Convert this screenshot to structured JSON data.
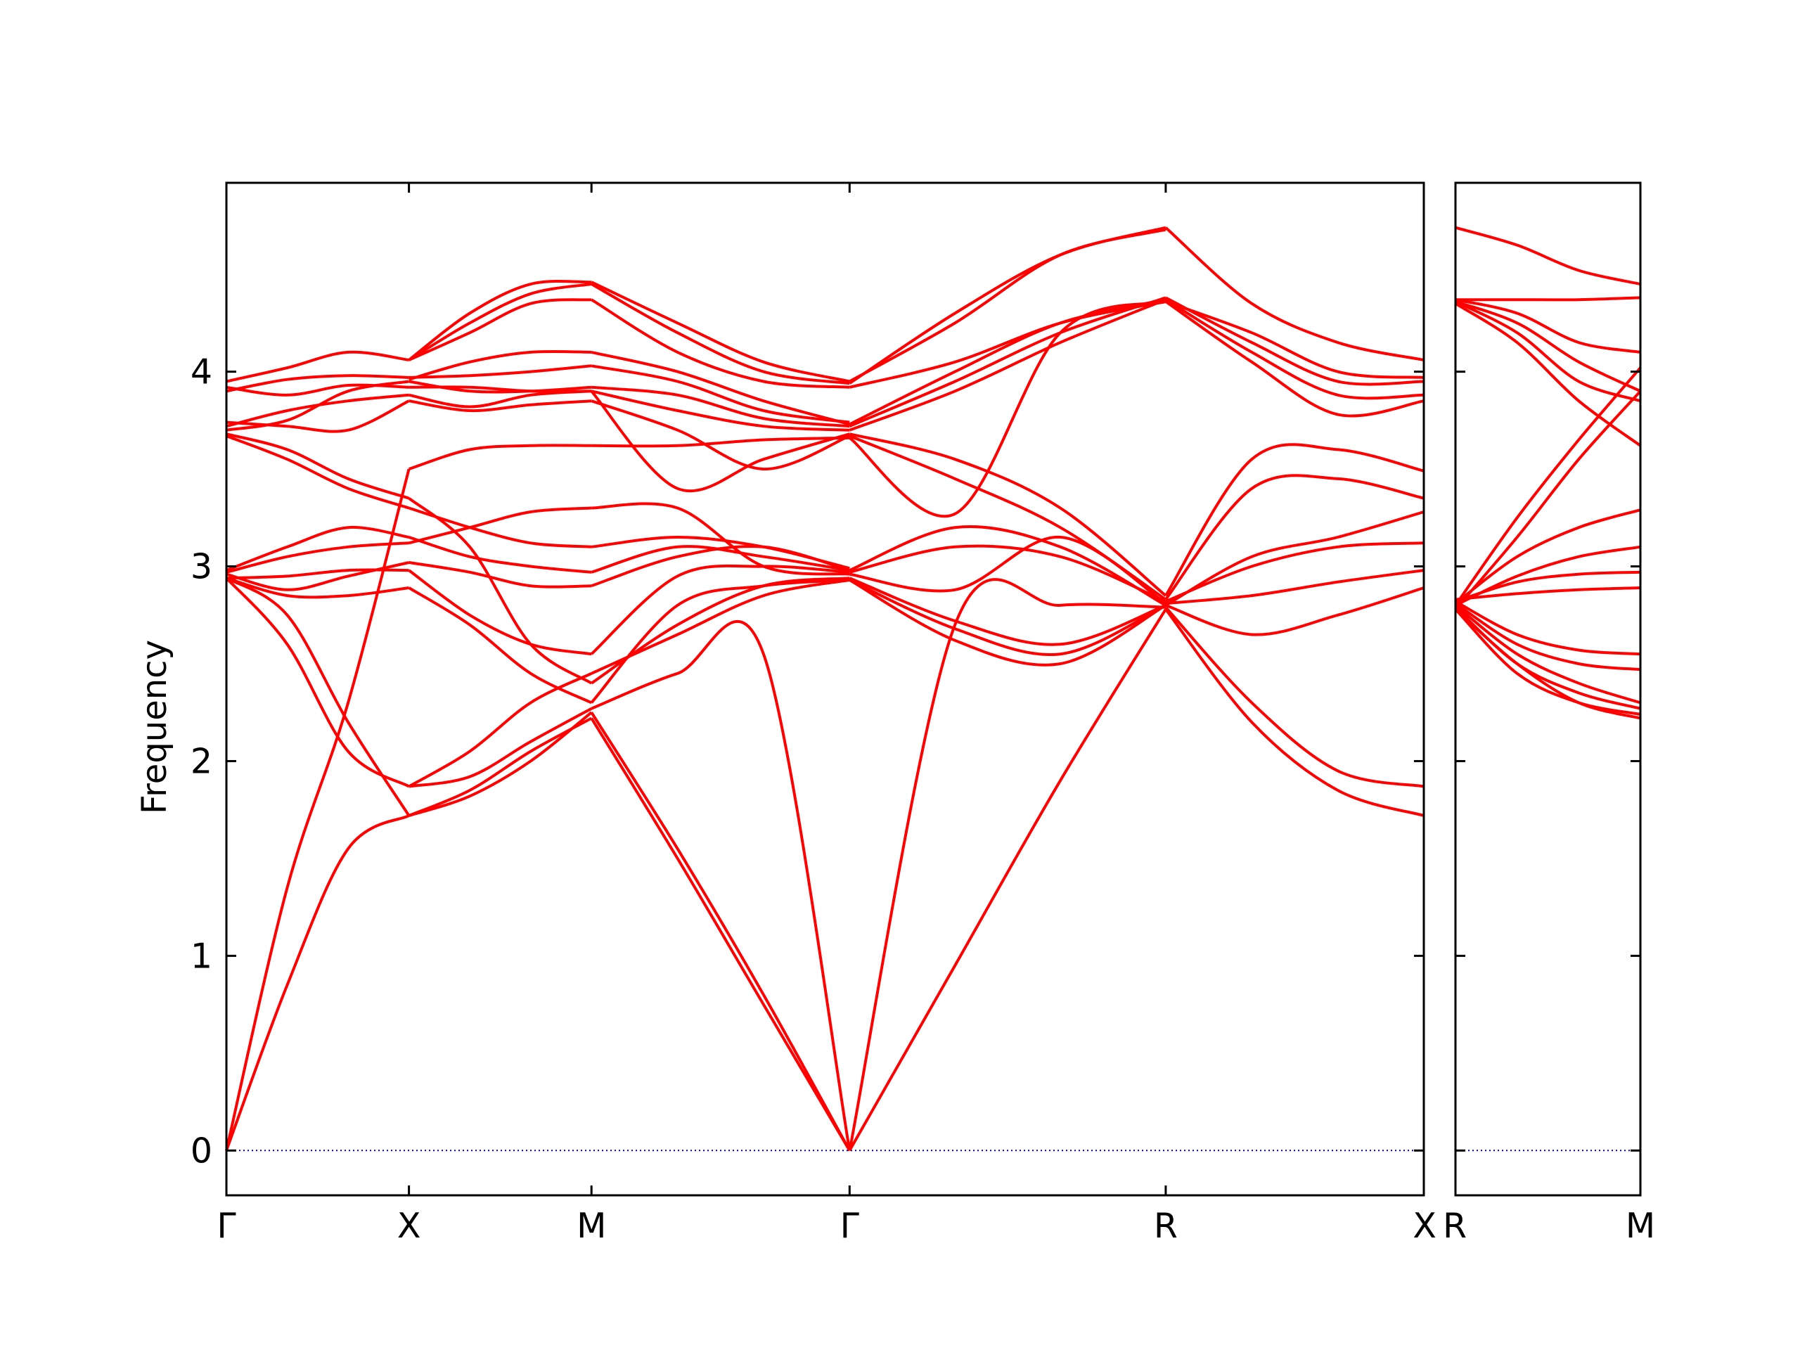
{
  "chart_data": {
    "type": "line",
    "title": "",
    "ylabel": "Frequency",
    "ylim": [
      -0.23,
      4.97
    ],
    "y_ticks": [
      0,
      1,
      2,
      3,
      4
    ],
    "grid": false,
    "line_color": "#ff0000",
    "zero_line_color": "#0000aa",
    "panels": [
      {
        "name": "main",
        "segments": [
          {
            "from": "Γ",
            "to": "X",
            "length": 0.5,
            "bands": [
              [
                0.0,
                0.85,
                1.55,
                1.72
              ],
              [
                0.0,
                1.35,
                2.3,
                3.5
              ],
              [
                2.94,
                2.75,
                2.2,
                1.72
              ],
              [
                2.94,
                2.6,
                2.05,
                1.87
              ],
              [
                2.94,
                2.85,
                2.85,
                2.89
              ],
              [
                2.94,
                2.95,
                2.98,
                2.98
              ],
              [
                2.96,
                2.88,
                2.95,
                3.02
              ],
              [
                2.97,
                3.05,
                3.1,
                3.12
              ],
              [
                2.98,
                3.1,
                3.2,
                3.15
              ],
              [
                3.67,
                3.55,
                3.4,
                3.3
              ],
              [
                3.68,
                3.6,
                3.45,
                3.35
              ],
              [
                3.7,
                3.75,
                3.9,
                3.95
              ],
              [
                3.72,
                3.8,
                3.85,
                3.88
              ],
              [
                3.74,
                3.72,
                3.7,
                3.85
              ],
              [
                3.9,
                3.96,
                3.98,
                3.97
              ],
              [
                3.92,
                3.88,
                3.93,
                3.92
              ],
              [
                3.95,
                4.02,
                4.1,
                4.06
              ]
            ]
          },
          {
            "from": "X",
            "to": "M",
            "length": 0.5,
            "bands": [
              [
                1.72,
                1.85,
                2.05,
                2.22
              ],
              [
                1.72,
                1.82,
                2.0,
                2.25
              ],
              [
                1.87,
                1.92,
                2.1,
                2.27
              ],
              [
                1.87,
                2.05,
                2.3,
                2.45
              ],
              [
                2.89,
                2.7,
                2.45,
                2.3
              ],
              [
                2.98,
                2.75,
                2.6,
                2.55
              ],
              [
                3.02,
                2.97,
                2.9,
                2.9
              ],
              [
                3.12,
                3.2,
                3.28,
                3.3
              ],
              [
                3.15,
                3.05,
                3.0,
                2.97
              ],
              [
                3.3,
                3.2,
                3.12,
                3.1
              ],
              [
                3.35,
                3.1,
                2.6,
                2.4
              ],
              [
                3.5,
                3.6,
                3.62,
                3.62
              ],
              [
                3.85,
                3.8,
                3.83,
                3.85
              ],
              [
                3.88,
                3.82,
                3.88,
                3.9
              ],
              [
                3.92,
                3.92,
                3.9,
                3.9
              ],
              [
                3.95,
                3.9,
                3.9,
                3.92
              ],
              [
                3.97,
                3.98,
                4.0,
                4.03
              ],
              [
                3.96,
                4.05,
                4.1,
                4.1
              ],
              [
                4.06,
                4.2,
                4.35,
                4.37
              ],
              [
                4.06,
                4.25,
                4.4,
                4.45
              ],
              [
                4.06,
                4.3,
                4.45,
                4.46
              ]
            ]
          },
          {
            "from": "M",
            "to": "Γ",
            "length": 0.707,
            "bands": [
              [
                2.22,
                1.5,
                0.75,
                0.0
              ],
              [
                2.25,
                1.55,
                0.8,
                0.0
              ],
              [
                2.27,
                2.45,
                2.55,
                0.0
              ],
              [
                2.3,
                2.8,
                2.9,
                2.93
              ],
              [
                2.45,
                2.65,
                2.85,
                2.93
              ],
              [
                2.4,
                2.7,
                2.9,
                2.94
              ],
              [
                2.55,
                2.95,
                3.0,
                2.97
              ],
              [
                2.9,
                3.05,
                3.1,
                2.98
              ],
              [
                2.97,
                3.1,
                3.05,
                2.98
              ],
              [
                3.1,
                3.15,
                3.1,
                2.99
              ],
              [
                3.3,
                3.3,
                3.0,
                2.96
              ],
              [
                3.62,
                3.62,
                3.65,
                3.66
              ],
              [
                3.85,
                3.7,
                3.5,
                3.67
              ],
              [
                3.9,
                3.4,
                3.55,
                3.68
              ],
              [
                3.9,
                3.8,
                3.72,
                3.7
              ],
              [
                3.92,
                3.88,
                3.76,
                3.72
              ],
              [
                4.03,
                3.95,
                3.8,
                3.74
              ],
              [
                4.1,
                4.0,
                3.85,
                3.73
              ],
              [
                4.37,
                4.1,
                3.95,
                3.92
              ],
              [
                4.45,
                4.2,
                4.0,
                3.94
              ],
              [
                4.46,
                4.25,
                4.05,
                3.95
              ]
            ]
          },
          {
            "from": "Γ",
            "to": "R",
            "length": 0.866,
            "bands": [
              [
                0.0,
                0.95,
                1.9,
                2.78
              ],
              [
                0.0,
                2.7,
                2.8,
                2.79
              ],
              [
                2.93,
                2.62,
                2.5,
                2.8
              ],
              [
                2.93,
                2.68,
                2.55,
                2.8
              ],
              [
                2.94,
                2.72,
                2.6,
                2.8
              ],
              [
                2.96,
                2.88,
                3.15,
                2.81
              ],
              [
                2.97,
                3.1,
                3.05,
                2.82
              ],
              [
                2.98,
                3.2,
                3.1,
                2.8
              ],
              [
                3.66,
                3.27,
                4.2,
                4.36
              ],
              [
                3.67,
                3.45,
                3.2,
                2.83
              ],
              [
                3.68,
                3.55,
                3.3,
                2.85
              ],
              [
                3.7,
                3.9,
                4.15,
                4.37
              ],
              [
                3.72,
                3.95,
                4.2,
                4.38
              ],
              [
                3.73,
                4.0,
                4.25,
                4.37
              ],
              [
                3.92,
                4.05,
                4.25,
                4.36
              ],
              [
                3.94,
                4.3,
                4.6,
                4.74
              ],
              [
                3.95,
                4.25,
                4.6,
                4.73
              ]
            ]
          },
          {
            "from": "R",
            "to": "X",
            "length": 0.707,
            "bands": [
              [
                2.78,
                2.2,
                1.85,
                1.72
              ],
              [
                2.79,
                2.3,
                1.95,
                1.87
              ],
              [
                2.8,
                2.65,
                2.75,
                2.89
              ],
              [
                2.81,
                2.85,
                2.92,
                2.98
              ],
              [
                2.82,
                3.0,
                3.1,
                3.12
              ],
              [
                2.8,
                3.05,
                3.15,
                3.28
              ],
              [
                2.83,
                3.4,
                3.45,
                3.35
              ],
              [
                2.85,
                3.55,
                3.6,
                3.49
              ],
              [
                4.36,
                4.05,
                3.78,
                3.85
              ],
              [
                4.37,
                4.1,
                3.88,
                3.88
              ],
              [
                4.38,
                4.15,
                3.95,
                3.95
              ],
              [
                4.36,
                4.2,
                4.0,
                3.97
              ],
              [
                4.74,
                4.35,
                4.15,
                4.06
              ]
            ]
          }
        ],
        "tick_labels": [
          "Γ",
          "X",
          "M",
          "Γ",
          "R",
          "X"
        ]
      },
      {
        "name": "side",
        "segments": [
          {
            "from": "R",
            "to": "M",
            "length": 0.5,
            "bands": [
              [
                2.78,
                2.5,
                2.3,
                2.22
              ],
              [
                2.78,
                2.45,
                2.3,
                2.24
              ],
              [
                2.79,
                2.5,
                2.35,
                2.27
              ],
              [
                2.8,
                2.55,
                2.4,
                2.3
              ],
              [
                2.81,
                2.6,
                2.5,
                2.47
              ],
              [
                2.82,
                2.65,
                2.57,
                2.55
              ],
              [
                2.83,
                2.86,
                2.88,
                2.89
              ],
              [
                2.82,
                2.92,
                2.96,
                2.97
              ],
              [
                2.8,
                2.95,
                3.05,
                3.1
              ],
              [
                2.81,
                3.05,
                3.2,
                3.29
              ],
              [
                2.78,
                3.15,
                3.55,
                3.9
              ],
              [
                2.8,
                3.25,
                3.65,
                4.02
              ],
              [
                4.35,
                4.15,
                3.85,
                3.62
              ],
              [
                4.36,
                4.2,
                3.95,
                3.85
              ],
              [
                4.36,
                4.25,
                4.05,
                3.9
              ],
              [
                4.37,
                4.3,
                4.15,
                4.1
              ],
              [
                4.37,
                4.37,
                4.37,
                4.38
              ],
              [
                4.74,
                4.65,
                4.52,
                4.45
              ]
            ]
          }
        ],
        "tick_labels": [
          "R",
          "M"
        ]
      }
    ]
  }
}
